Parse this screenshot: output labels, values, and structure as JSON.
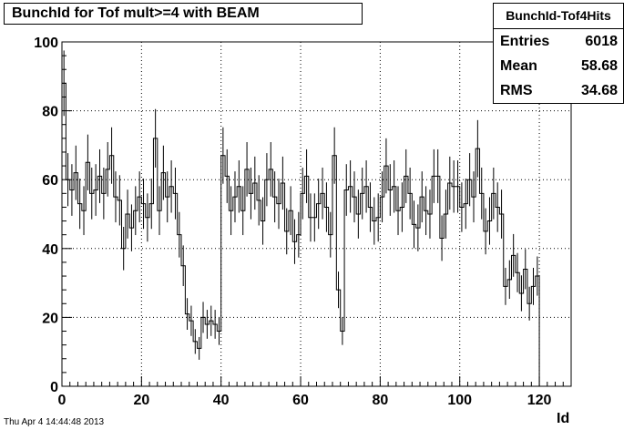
{
  "title": "BunchId for Tof mult>=4  with BEAM",
  "stats": {
    "name": "BunchId-Tof4Hits",
    "rows": [
      {
        "label": "Entries",
        "value": "6018"
      },
      {
        "label": "Mean",
        "value": "58.68"
      },
      {
        "label": "RMS",
        "value": "34.68"
      }
    ]
  },
  "datestamp": "Thu Apr  4 14:44:48 2013",
  "chart_data": {
    "type": "bar",
    "style": "histogram-with-errors",
    "title": "BunchId for Tof mult>=4  with BEAM",
    "xlabel": "Id",
    "ylabel": "",
    "xlim": [
      0,
      128
    ],
    "ylim": [
      0,
      100
    ],
    "grid": true,
    "x_ticks": [
      0,
      20,
      40,
      60,
      80,
      100,
      120
    ],
    "y_ticks": [
      0,
      20,
      40,
      60,
      80,
      100
    ],
    "bin_width": 1,
    "x_start": 0,
    "values": [
      88,
      60,
      57,
      62,
      53,
      51,
      65,
      56,
      57,
      61,
      56,
      63,
      67,
      55,
      54,
      40,
      50,
      46,
      51,
      55,
      53,
      49,
      53,
      72,
      51,
      62,
      55,
      58,
      56,
      44,
      35,
      21,
      19,
      13,
      11,
      20,
      18,
      19,
      18,
      16,
      67,
      61,
      51,
      55,
      58,
      51,
      63,
      56,
      59,
      54,
      48,
      60,
      63,
      55,
      53,
      59,
      45,
      51,
      42,
      44,
      56,
      61,
      49,
      49,
      53,
      56,
      52,
      44,
      67,
      28,
      16,
      57,
      58,
      55,
      50,
      56,
      58,
      52,
      48,
      49,
      55,
      64,
      57,
      58,
      51,
      52,
      61,
      56,
      47,
      46,
      55,
      51,
      50,
      61,
      61,
      43,
      50,
      59,
      58,
      58,
      52,
      53,
      60,
      55,
      69,
      56,
      45,
      48,
      56,
      52,
      50,
      29,
      31,
      38,
      33,
      27,
      34,
      24,
      29,
      32
    ],
    "errors": [
      9.5,
      7.7,
      7.5,
      7.9,
      7.3,
      7.1,
      8.1,
      7.5,
      7.5,
      7.8,
      7.5,
      7.9,
      8.2,
      7.4,
      7.3,
      6.3,
      7.1,
      6.8,
      7.1,
      7.4,
      7.3,
      7.0,
      7.3,
      8.5,
      7.1,
      7.9,
      7.4,
      7.6,
      7.5,
      6.6,
      5.9,
      4.6,
      4.4,
      3.6,
      3.3,
      4.5,
      4.2,
      4.4,
      4.2,
      4.0,
      8.2,
      7.8,
      7.1,
      7.4,
      7.6,
      7.1,
      7.9,
      7.5,
      7.7,
      7.3,
      6.9,
      7.7,
      7.9,
      7.4,
      7.3,
      7.7,
      6.7,
      7.1,
      6.5,
      6.6,
      7.5,
      7.8,
      7.0,
      7.0,
      7.3,
      7.5,
      7.2,
      6.6,
      8.2,
      5.3,
      4.0,
      7.5,
      7.6,
      7.4,
      7.1,
      7.5,
      7.6,
      7.2,
      6.9,
      7.0,
      7.4,
      8.0,
      7.5,
      7.6,
      7.1,
      7.2,
      7.8,
      7.5,
      6.9,
      6.8,
      7.4,
      7.1,
      7.1,
      7.8,
      7.8,
      6.6,
      7.1,
      7.7,
      7.6,
      7.6,
      7.2,
      7.3,
      7.7,
      7.4,
      8.3,
      7.5,
      6.7,
      6.9,
      7.5,
      7.2,
      7.1,
      5.4,
      5.6,
      6.2,
      5.7,
      5.2,
      5.8,
      4.9,
      5.4,
      5.7
    ]
  }
}
